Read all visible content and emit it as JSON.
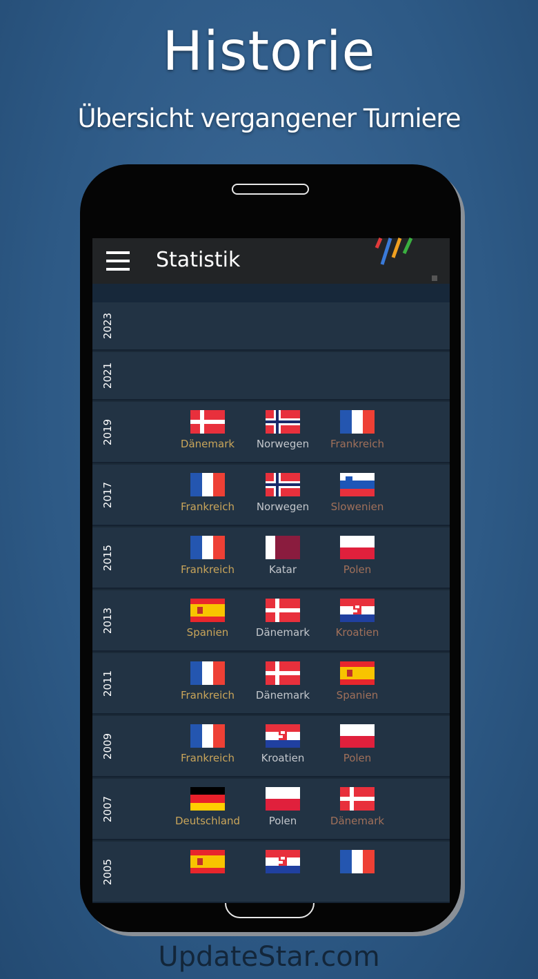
{
  "headline": {
    "title": "Historie",
    "subtitle": "Übersicht vergangener Turniere"
  },
  "appbar": {
    "title": "Statistik",
    "menu_icon": "hamburger-menu-icon",
    "logo": "four-stripes-logo"
  },
  "colors": {
    "gold": "#c9a55a",
    "silver": "#c3c7cc",
    "bronze": "#a0705a"
  },
  "watermark": "UpdateStar.com",
  "years": [
    {
      "year": "2023",
      "podium": []
    },
    {
      "year": "2021",
      "podium": []
    },
    {
      "year": "2019",
      "podium": [
        {
          "name": "Dänemark",
          "flag": "dk"
        },
        {
          "name": "Norwegen",
          "flag": "no"
        },
        {
          "name": "Frankreich",
          "flag": "fr"
        }
      ]
    },
    {
      "year": "2017",
      "podium": [
        {
          "name": "Frankreich",
          "flag": "fr"
        },
        {
          "name": "Norwegen",
          "flag": "no"
        },
        {
          "name": "Slowenien",
          "flag": "si"
        }
      ]
    },
    {
      "year": "2015",
      "podium": [
        {
          "name": "Frankreich",
          "flag": "fr"
        },
        {
          "name": "Katar",
          "flag": "qa"
        },
        {
          "name": "Polen",
          "flag": "pl"
        }
      ]
    },
    {
      "year": "2013",
      "podium": [
        {
          "name": "Spanien",
          "flag": "es"
        },
        {
          "name": "Dänemark",
          "flag": "dk"
        },
        {
          "name": "Kroatien",
          "flag": "hr"
        }
      ]
    },
    {
      "year": "2011",
      "podium": [
        {
          "name": "Frankreich",
          "flag": "fr"
        },
        {
          "name": "Dänemark",
          "flag": "dk"
        },
        {
          "name": "Spanien",
          "flag": "es"
        }
      ]
    },
    {
      "year": "2009",
      "podium": [
        {
          "name": "Frankreich",
          "flag": "fr"
        },
        {
          "name": "Kroatien",
          "flag": "hr"
        },
        {
          "name": "Polen",
          "flag": "pl"
        }
      ]
    },
    {
      "year": "2007",
      "podium": [
        {
          "name": "Deutschland",
          "flag": "de"
        },
        {
          "name": "Polen",
          "flag": "pl"
        },
        {
          "name": "Dänemark",
          "flag": "dk"
        }
      ]
    },
    {
      "year": "2005",
      "podium": [
        {
          "name": "",
          "flag": "es"
        },
        {
          "name": "",
          "flag": "hr"
        },
        {
          "name": "",
          "flag": "fr"
        }
      ]
    }
  ]
}
